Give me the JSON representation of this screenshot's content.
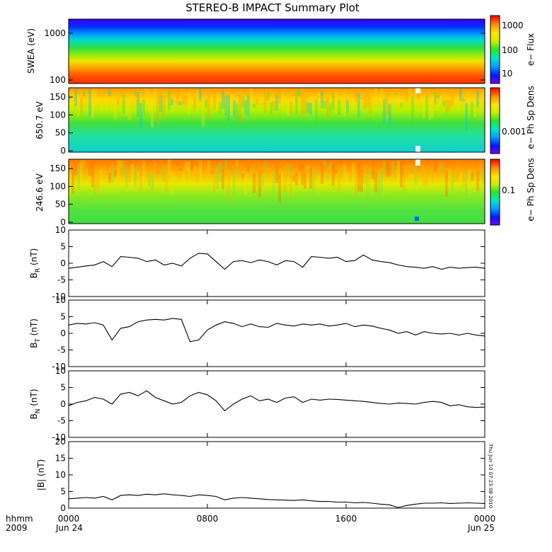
{
  "title": "STEREO-B IMPACT Summary Plot",
  "footer": {
    "x_unit": "hhmm",
    "year": "2009",
    "start_date": "Jun 24",
    "end_date": "Jun 25"
  },
  "side_stamp": "Thu Jun 10 07:23:08 2010",
  "colors": {
    "line": "#000000",
    "colormap": [
      "#7a00ff",
      "#0018ff",
      "#00a0ff",
      "#00e6c8",
      "#28e628",
      "#c8f000",
      "#ffe600",
      "#ff9600",
      "#ff3c00",
      "#ff0000"
    ]
  },
  "chart_data": [
    {
      "type": "heatmap",
      "id": "swea",
      "ylabel": "SWEA (eV)",
      "y_scale": "log",
      "ylim": [
        90,
        1800
      ],
      "yticks": [
        "100",
        "1000"
      ],
      "colorbar": {
        "label": "e− Flux",
        "scale": "log",
        "ticks": [
          "10",
          "100",
          "1000"
        ],
        "range": [
          4,
          2500
        ]
      },
      "x_time_hours": [
        0,
        24
      ],
      "profile_note": "flux high at low energy, falling to low at 1800 eV"
    },
    {
      "type": "heatmap",
      "id": "pad650",
      "ylabel": "650.7 eV",
      "ylim": [
        0,
        180
      ],
      "yticks": [
        "0",
        "50",
        "100",
        "150"
      ],
      "colorbar": {
        "label": "e− Ph Sp Dens",
        "scale": "log",
        "ticks": [
          "0.001"
        ]
      }
    },
    {
      "type": "heatmap",
      "id": "pad246",
      "ylabel": "246.6 eV",
      "ylim": [
        0,
        180
      ],
      "yticks": [
        "0",
        "50",
        "100",
        "150"
      ],
      "colorbar": {
        "label": "e− Ph Sp Dens",
        "scale": "log",
        "ticks": [
          "0.1"
        ]
      }
    },
    {
      "type": "line",
      "id": "br",
      "ylabel": "B",
      "ylabel_sub": "R",
      "ylabel_unit": " (nT)",
      "ylim": [
        -10,
        10
      ],
      "yticks": [
        "10",
        "5",
        "0",
        "-5",
        "-10"
      ],
      "x": [
        0,
        0.5,
        1,
        1.5,
        2,
        2.5,
        3,
        3.5,
        4,
        4.5,
        5,
        5.5,
        6,
        6.5,
        7,
        7.5,
        8,
        8.5,
        9,
        9.5,
        10,
        10.5,
        11,
        11.5,
        12,
        12.5,
        13,
        13.5,
        14,
        14.5,
        15,
        15.5,
        16,
        16.5,
        17,
        17.5,
        18,
        18.5,
        19,
        19.5,
        20,
        20.5,
        21,
        21.5,
        22,
        22.5,
        23,
        23.5,
        24
      ],
      "y": [
        -1.5,
        -1.2,
        -0.8,
        -0.5,
        0.5,
        -1.0,
        2.0,
        1.8,
        1.5,
        0.5,
        1.0,
        -0.5,
        0.0,
        -0.8,
        1.5,
        3.0,
        2.8,
        0.5,
        -1.8,
        0.5,
        0.8,
        0.2,
        1.0,
        0.5,
        -0.5,
        0.8,
        0.5,
        -1.2,
        2.0,
        1.8,
        1.5,
        1.8,
        0.5,
        0.8,
        2.5,
        1.0,
        0.5,
        0.2,
        -0.5,
        -1.0,
        -1.2,
        -1.5,
        -1.0,
        -1.8,
        -1.2,
        -1.5,
        -1.3,
        -1.2,
        -1.5
      ]
    },
    {
      "type": "line",
      "id": "bt",
      "ylabel": "B",
      "ylabel_sub": "T",
      "ylabel_unit": " (nT)",
      "ylim": [
        -10,
        10
      ],
      "yticks": [
        "10",
        "5",
        "0",
        "-5",
        "-10"
      ],
      "x": [
        0,
        0.5,
        1,
        1.5,
        2,
        2.5,
        3,
        3.5,
        4,
        4.5,
        5,
        5.5,
        6,
        6.5,
        7,
        7.5,
        8,
        8.5,
        9,
        9.5,
        10,
        10.5,
        11,
        11.5,
        12,
        12.5,
        13,
        13.5,
        14,
        14.5,
        15,
        15.5,
        16,
        16.5,
        17,
        17.5,
        18,
        18.5,
        19,
        19.5,
        20,
        20.5,
        21,
        21.5,
        22,
        22.5,
        23,
        23.5,
        24
      ],
      "y": [
        2.5,
        3.0,
        2.8,
        3.2,
        2.5,
        -2.0,
        1.5,
        2.0,
        3.5,
        4.0,
        4.2,
        4.0,
        4.5,
        4.2,
        -2.5,
        -2.0,
        1.0,
        2.5,
        3.5,
        3.0,
        2.0,
        2.8,
        2.0,
        1.8,
        3.0,
        2.5,
        2.2,
        2.8,
        2.5,
        2.8,
        2.2,
        2.5,
        3.0,
        2.0,
        2.5,
        2.2,
        1.5,
        1.0,
        0.0,
        0.5,
        -0.5,
        0.5,
        0.0,
        -0.2,
        0.0,
        -0.5,
        0.0,
        -0.5,
        -0.8
      ]
    },
    {
      "type": "line",
      "id": "bn",
      "ylabel": "B",
      "ylabel_sub": "N",
      "ylabel_unit": " (nT)",
      "ylim": [
        -10,
        10
      ],
      "yticks": [
        "10",
        "5",
        "0",
        "-5",
        "-10"
      ],
      "x": [
        0,
        0.5,
        1,
        1.5,
        2,
        2.5,
        3,
        3.5,
        4,
        4.5,
        5,
        5.5,
        6,
        6.5,
        7,
        7.5,
        8,
        8.5,
        9,
        9.5,
        10,
        10.5,
        11,
        11.5,
        12,
        12.5,
        13,
        13.5,
        14,
        14.5,
        15,
        15.5,
        16,
        16.5,
        17,
        17.5,
        18,
        18.5,
        19,
        19.5,
        20,
        20.5,
        21,
        21.5,
        22,
        22.5,
        23,
        23.5,
        24
      ],
      "y": [
        -0.5,
        0.5,
        1.0,
        2.0,
        1.5,
        0.0,
        3.0,
        3.5,
        2.5,
        4.0,
        2.0,
        1.0,
        0.0,
        0.5,
        2.5,
        3.5,
        2.8,
        1.0,
        -2.0,
        0.0,
        1.5,
        2.5,
        1.0,
        1.5,
        0.5,
        1.8,
        2.2,
        0.5,
        1.5,
        1.2,
        1.5,
        1.4,
        1.2,
        1.0,
        0.8,
        0.5,
        0.2,
        0.0,
        0.3,
        0.2,
        0.0,
        0.5,
        0.8,
        0.5,
        -0.5,
        -0.2,
        -0.8,
        -1.0,
        -0.9
      ]
    },
    {
      "type": "line",
      "id": "bmag",
      "ylabel": "|B| (nT)",
      "ylim": [
        0,
        20
      ],
      "yticks": [
        "20",
        "15",
        "10",
        "5",
        "0"
      ],
      "x": [
        0,
        0.5,
        1,
        1.5,
        2,
        2.5,
        3,
        3.5,
        4,
        4.5,
        5,
        5.5,
        6,
        6.5,
        7,
        7.5,
        8,
        8.5,
        9,
        9.5,
        10,
        10.5,
        11,
        11.5,
        12,
        12.5,
        13,
        13.5,
        14,
        14.5,
        15,
        15.5,
        16,
        16.5,
        17,
        17.5,
        18,
        18.5,
        19,
        19.5,
        20,
        20.5,
        21,
        21.5,
        22,
        22.5,
        23,
        23.5,
        24
      ],
      "y": [
        2.8,
        3.0,
        3.2,
        3.0,
        3.5,
        2.5,
        3.8,
        4.0,
        3.8,
        4.2,
        4.0,
        4.3,
        4.0,
        3.8,
        3.5,
        4.0,
        3.8,
        3.5,
        2.5,
        3.0,
        3.2,
        3.0,
        2.8,
        2.6,
        2.5,
        2.4,
        2.3,
        2.5,
        2.2,
        2.0,
        2.0,
        1.8,
        1.8,
        1.6,
        1.7,
        1.5,
        1.2,
        1.0,
        0.2,
        0.8,
        1.2,
        1.5,
        1.5,
        1.6,
        1.4,
        1.5,
        1.6,
        1.5,
        1.4
      ]
    }
  ],
  "x_axis": {
    "tick_labels": [
      "0000",
      "0800",
      "1600",
      "0000"
    ],
    "tick_hours": [
      0,
      8,
      16,
      24
    ]
  }
}
